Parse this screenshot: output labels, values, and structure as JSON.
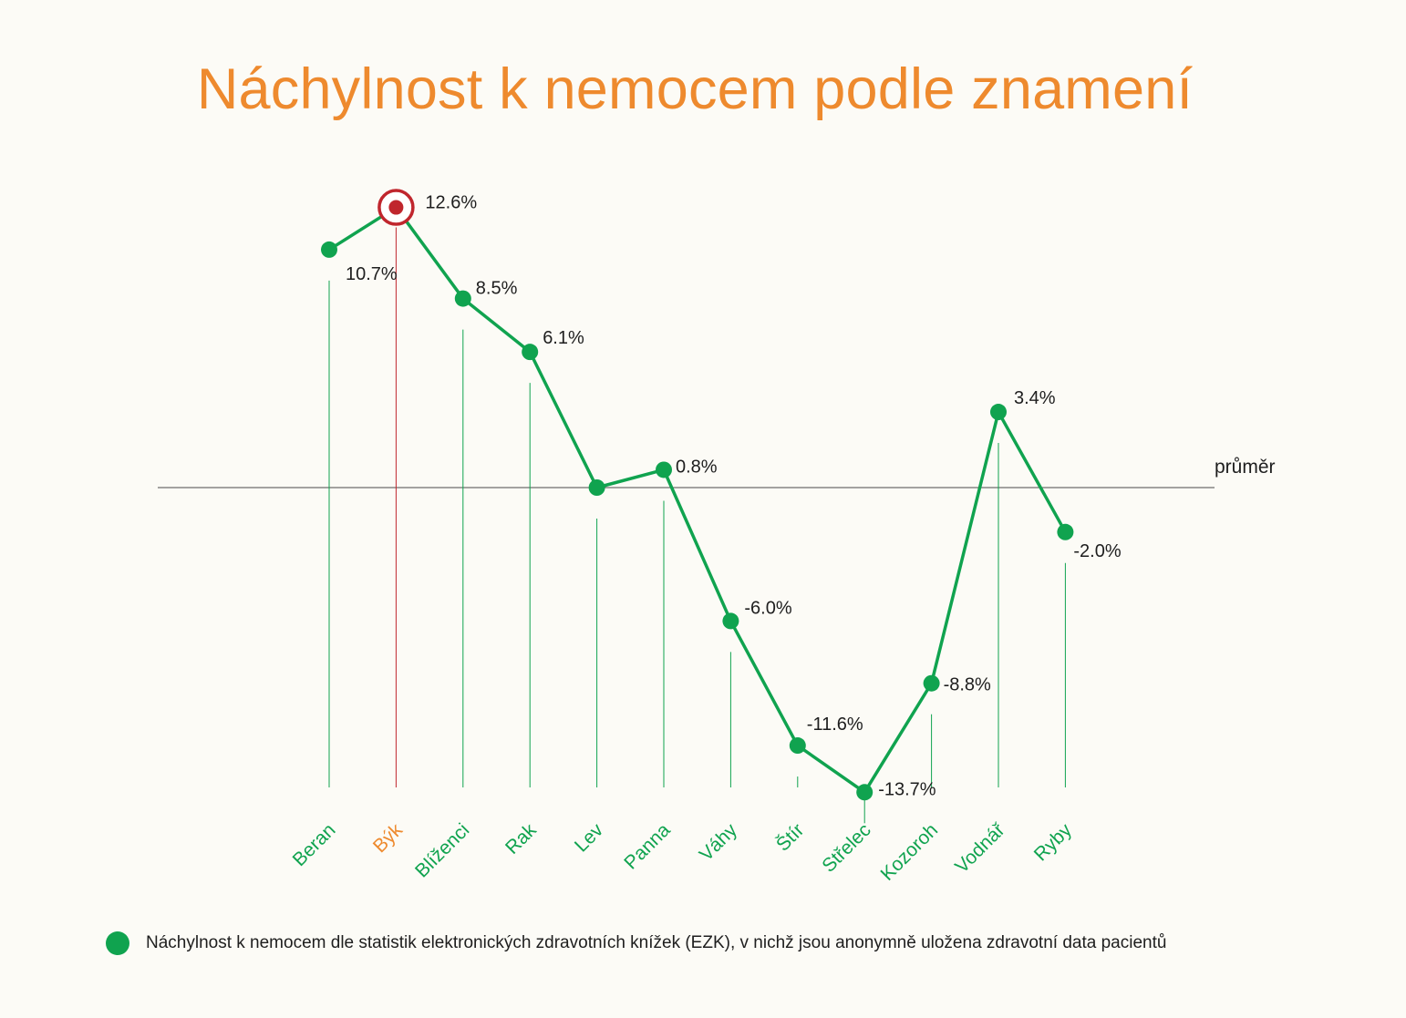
{
  "title": "Náchylnost k nemocem podle znamení",
  "reference_label": "průměr",
  "legend": {
    "text": "Náchylnost k nemocem dle statistik elektronických zdravotních knížek (EZK), v nichž jsou anonymně uložena zdravotní data pacientů"
  },
  "colors": {
    "background": "#FCFBF6",
    "title": "#EE8A2E",
    "series": "#10A34F",
    "highlight": "#C0262D",
    "highlight_label": "#EE8A2E",
    "reference_line": "#4A4A4A",
    "value_text": "#1E1E1E"
  },
  "chart_data": {
    "type": "line",
    "title": "Náchylnost k nemocem podle znamení",
    "xlabel": "",
    "ylabel": "",
    "categories": [
      "Beran",
      "Býk",
      "Blíženci",
      "Rak",
      "Lev",
      "Panna",
      "Váhy",
      "Štír",
      "Střelec",
      "Kozoroh",
      "Vodnář",
      "Ryby"
    ],
    "series": [
      {
        "values": [
          10.7,
          12.6,
          8.5,
          6.1,
          0.0,
          0.8,
          -6.0,
          -11.6,
          -13.7,
          -8.8,
          3.4,
          -2.0
        ],
        "value_labels": [
          "10.7%",
          "12.6%",
          "8.5%",
          "6.1%",
          "",
          "0.8%",
          "-6.0%",
          "-11.6%",
          "-13.7%",
          "-8.8%",
          "3.4%",
          "-2.0%"
        ]
      }
    ],
    "highlight_category": "Býk",
    "reference_line": {
      "value": 0,
      "label": "průměr"
    },
    "ylim": [
      -13.7,
      12.6
    ],
    "grid": false,
    "legend_position": "bottom"
  }
}
